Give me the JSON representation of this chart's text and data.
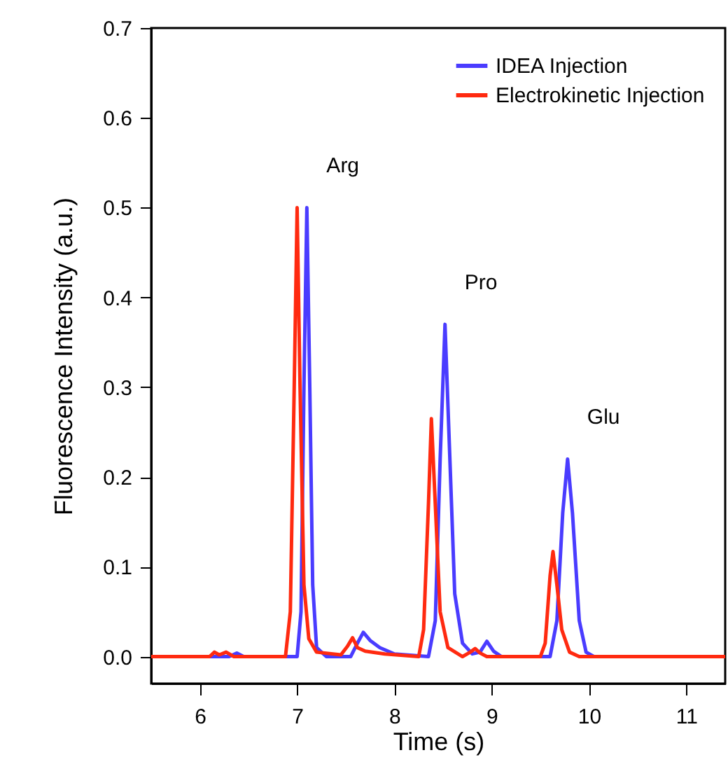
{
  "chart_data": {
    "type": "line",
    "xlabel": "Time (s)",
    "ylabel": "Fluorescence Intensity (a.u.)",
    "xlim": [
      5.5,
      11.4
    ],
    "ylim": [
      -0.03,
      0.7
    ],
    "xticks": [
      6,
      7,
      8,
      9,
      10,
      11
    ],
    "yticks": [
      {
        "value": 0,
        "label": "0.0"
      },
      {
        "value": 0.1,
        "label": "0.1"
      },
      {
        "value": 0.2,
        "label": "0.2"
      },
      {
        "value": 0.3,
        "label": "0.3"
      },
      {
        "value": 0.4,
        "label": "0.4"
      },
      {
        "value": 0.5,
        "label": "0.5"
      },
      {
        "value": 0.6,
        "label": "0.6"
      },
      {
        "value": 0.7,
        "label": "0.7"
      }
    ],
    "grid": false,
    "legend": "top right",
    "line_style": "solid",
    "annotations": [
      {
        "text": "Arg",
        "x": 7.1,
        "y": 0.5
      },
      {
        "text": "Pro",
        "x": 8.52,
        "y": 0.37
      },
      {
        "text": "Glu",
        "x": 9.78,
        "y": 0.22
      }
    ],
    "series": [
      {
        "name": "IDEA Injection",
        "color": "#4a3cff",
        "x": [
          5.5,
          6.3,
          6.38,
          6.45,
          7.0,
          7.04,
          7.07,
          7.1,
          7.13,
          7.16,
          7.2,
          7.3,
          7.55,
          7.62,
          7.68,
          7.75,
          7.85,
          8.0,
          8.35,
          8.42,
          8.47,
          8.52,
          8.57,
          8.62,
          8.7,
          8.8,
          8.88,
          8.95,
          9.02,
          9.1,
          9.6,
          9.67,
          9.73,
          9.78,
          9.83,
          9.9,
          9.97,
          10.05,
          11.4
        ],
        "values": [
          0,
          0,
          0.004,
          0,
          0,
          0.05,
          0.3,
          0.5,
          0.3,
          0.08,
          0.01,
          0,
          0,
          0.015,
          0.027,
          0.018,
          0.01,
          0.003,
          0,
          0.04,
          0.22,
          0.37,
          0.22,
          0.07,
          0.015,
          0.003,
          0.005,
          0.017,
          0.006,
          0,
          0,
          0.04,
          0.16,
          0.22,
          0.16,
          0.04,
          0.005,
          0,
          0
        ]
      },
      {
        "name": "Electrokinetic Injection",
        "color": "#ff2a10",
        "x": [
          5.5,
          6.1,
          6.15,
          6.2,
          6.27,
          6.35,
          6.88,
          6.93,
          6.97,
          7.0,
          7.03,
          7.07,
          7.12,
          7.2,
          7.45,
          7.52,
          7.57,
          7.62,
          7.7,
          7.9,
          8.25,
          8.3,
          8.35,
          8.38,
          8.42,
          8.47,
          8.55,
          8.7,
          8.78,
          8.83,
          8.88,
          8.95,
          9.5,
          9.55,
          9.6,
          9.63,
          9.67,
          9.72,
          9.8,
          9.9,
          11.4
        ],
        "values": [
          0,
          0,
          0.005,
          0.002,
          0.005,
          0,
          0,
          0.05,
          0.3,
          0.5,
          0.3,
          0.08,
          0.02,
          0.005,
          0.002,
          0.012,
          0.021,
          0.01,
          0.006,
          0.003,
          0,
          0.03,
          0.17,
          0.265,
          0.17,
          0.05,
          0.01,
          0,
          0.005,
          0.009,
          0.004,
          0,
          0,
          0.015,
          0.09,
          0.117,
          0.08,
          0.03,
          0.005,
          0,
          0
        ]
      }
    ]
  }
}
